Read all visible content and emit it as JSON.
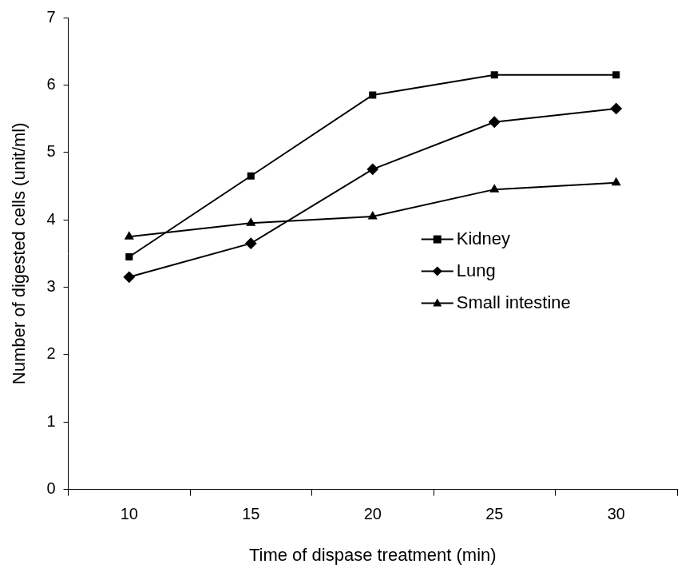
{
  "chart_data": {
    "type": "line",
    "x_label": "Time of dispase treatment (min)",
    "y_label": "Number of digested cells (unit/ml)",
    "categories": [
      10,
      15,
      20,
      25,
      30
    ],
    "series": [
      {
        "name": "Kidney",
        "color": "#000000",
        "marker": "square",
        "values": [
          3.45,
          4.65,
          5.85,
          6.15,
          6.15
        ]
      },
      {
        "name": "Lung",
        "color": "#000000",
        "marker": "diamond",
        "values": [
          3.15,
          3.65,
          4.75,
          5.45,
          5.65
        ]
      },
      {
        "name": "Small intestine",
        "color": "#000000",
        "marker": "triangle",
        "values": [
          3.75,
          3.95,
          4.05,
          4.45,
          4.55
        ]
      }
    ],
    "ylim": [
      0,
      7
    ],
    "yticks": [
      0,
      1,
      2,
      3,
      4,
      5,
      6,
      7
    ],
    "grid": false,
    "legend": "right"
  }
}
